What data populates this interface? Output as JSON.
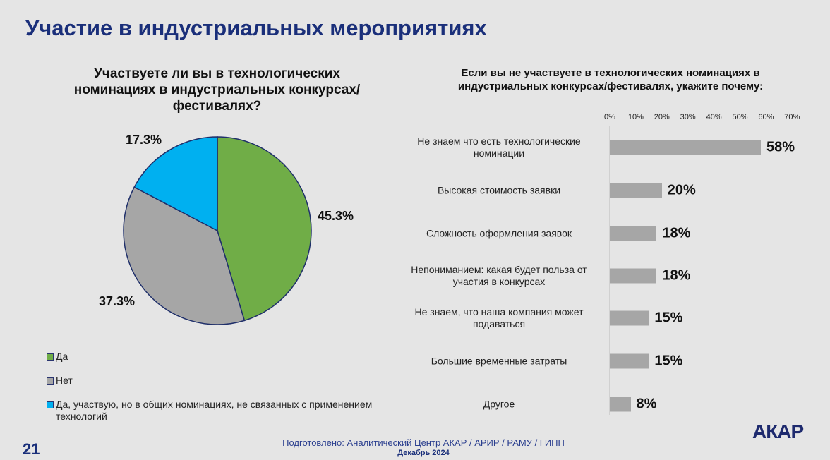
{
  "title": "Участие в индустриальных мероприятиях",
  "page_number": "21",
  "footer": {
    "line1": "Подготовлено: Аналитический Центр АКАР / АРИР / РАМУ / ГИПП",
    "line2": "Декабрь 2024"
  },
  "logo": "АКАР",
  "chart_data": [
    {
      "type": "pie",
      "title": "Участвуете ли вы в технологических номинациях в индустриальных конкурсах/фестивалях?",
      "slices": [
        {
          "label": "Да",
          "value": 45.3,
          "value_label": "45.3%",
          "color": "#70ad47"
        },
        {
          "label": "Нет",
          "value": 37.3,
          "value_label": "37.3%",
          "color": "#a6a6a6"
        },
        {
          "label": "Да, участвую, но в общих номинациях, не связанных с применением технологий",
          "value": 17.3,
          "value_label": "17.3%",
          "color": "#00b0f0"
        }
      ],
      "legend": "bottom-left"
    },
    {
      "type": "bar",
      "orientation": "horizontal",
      "title": "Если вы не участвуете в технологических номинациях в индустриальных конкурсах/фестивалях, укажите почему:",
      "xlim": [
        0,
        70
      ],
      "ticks": [
        "0%",
        "10%",
        "20%",
        "30%",
        "40%",
        "50%",
        "60%",
        "70%"
      ],
      "color": "#a6a6a6",
      "categories": [
        "Не знаем  что есть технологические номинации",
        "Высокая стоимость заявки",
        "Сложность оформления заявок",
        "Непониманием: какая будет польза от  участия в конкурсах",
        "Не знаем, что наша компания может подаваться",
        "Большие временные затраты",
        "Другое"
      ],
      "values": [
        58,
        20,
        18,
        18,
        15,
        15,
        8
      ],
      "value_labels": [
        "58%",
        "20%",
        "18%",
        "18%",
        "15%",
        "15%",
        "8%"
      ]
    }
  ]
}
